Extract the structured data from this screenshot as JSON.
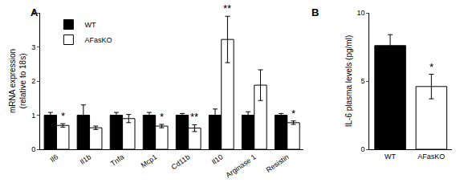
{
  "chart_data": [
    {
      "type": "bar",
      "title": "A",
      "categories": [
        "Il6",
        "Il1b",
        "Tnfa",
        "Mcp1",
        "Cd11b",
        "Il10",
        "Arginase 1",
        "Resistin"
      ],
      "series": [
        {
          "name": "WT",
          "color": "#000000",
          "values": [
            1.0,
            1.0,
            1.0,
            1.0,
            1.0,
            1.0,
            1.0,
            1.0
          ],
          "errors": [
            0.08,
            0.3,
            0.08,
            0.08,
            0.05,
            0.18,
            0.1,
            0.05
          ]
        },
        {
          "name": "AFasKO",
          "color": "#ffffff",
          "values": [
            0.7,
            0.63,
            0.9,
            0.68,
            0.62,
            3.22,
            1.88,
            0.78
          ],
          "errors": [
            0.05,
            0.05,
            0.12,
            0.05,
            0.1,
            0.68,
            0.45,
            0.05
          ]
        }
      ],
      "y_label": "mRNA expression (relative to 18s)",
      "ylim": [
        0,
        4
      ],
      "yticks": [
        0,
        1,
        2,
        3,
        4
      ],
      "grid": false,
      "legend": "upper left",
      "annotations": [
        {
          "category": "Il6",
          "series": "AFasKO",
          "text": "*"
        },
        {
          "category": "Mcp1",
          "series": "AFasKO",
          "text": "*"
        },
        {
          "category": "Cd11b",
          "series": "AFasKO",
          "text": "**"
        },
        {
          "category": "Il10",
          "series": "AFasKO",
          "text": "**"
        },
        {
          "category": "Resistin",
          "series": "AFasKO",
          "text": "*"
        }
      ]
    },
    {
      "type": "bar",
      "title": "B",
      "categories": [
        "WT",
        "AFasKO"
      ],
      "values": [
        7.6,
        4.6
      ],
      "errors": [
        0.8,
        0.9
      ],
      "colors": [
        "#000000",
        "#ffffff"
      ],
      "y_label": "IL-6 plasma levels (pg/ml)",
      "ylim": [
        0,
        10
      ],
      "yticks": [
        0,
        5,
        10
      ],
      "grid": false,
      "annotations": [
        {
          "category": "AFasKO",
          "text": "*"
        }
      ]
    }
  ]
}
